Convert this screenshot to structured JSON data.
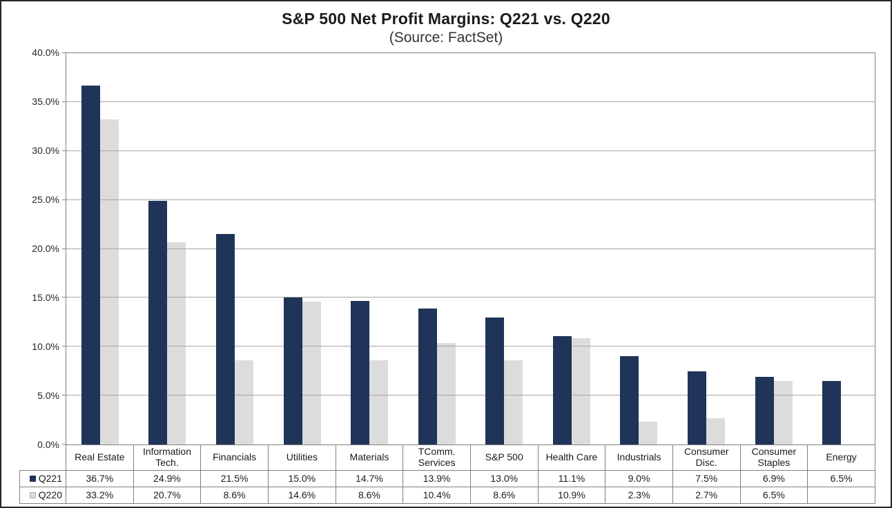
{
  "chart_data": {
    "type": "bar",
    "title": "S&P 500 Net Profit Margins: Q221 vs. Q220",
    "subtitle": "(Source: FactSet)",
    "categories": [
      "Real Estate",
      "Information Tech.",
      "Financials",
      "Utilities",
      "Materials",
      "TComm. Services",
      "S&P 500",
      "Health Care",
      "Industrials",
      "Consumer Disc.",
      "Consumer Staples",
      "Energy"
    ],
    "series": [
      {
        "name": "Q221",
        "color": "#1f3458",
        "values": [
          36.7,
          24.9,
          21.5,
          15.0,
          14.7,
          13.9,
          13.0,
          11.1,
          9.0,
          7.5,
          6.9,
          6.5
        ],
        "labels": [
          "36.7%",
          "24.9%",
          "21.5%",
          "15.0%",
          "14.7%",
          "13.9%",
          "13.0%",
          "11.1%",
          "9.0%",
          "7.5%",
          "6.9%",
          "6.5%"
        ]
      },
      {
        "name": "Q220",
        "color": "#dcdcdc",
        "values": [
          33.2,
          20.7,
          8.6,
          14.6,
          8.6,
          10.4,
          8.6,
          10.9,
          2.3,
          2.7,
          6.5,
          null
        ],
        "labels": [
          "33.2%",
          "20.7%",
          "8.6%",
          "14.6%",
          "8.6%",
          "10.4%",
          "8.6%",
          "10.9%",
          "2.3%",
          "2.7%",
          "6.5%",
          ""
        ]
      }
    ],
    "ylim": [
      0,
      40
    ],
    "ytick_step": 5,
    "ytick_labels": [
      "0.0%",
      "5.0%",
      "10.0%",
      "15.0%",
      "20.0%",
      "25.0%",
      "30.0%",
      "35.0%",
      "40.0%"
    ],
    "grid": true,
    "legend_position": "data-table-left",
    "colors": {
      "q221_bar": "#1f3458",
      "q220_bar": "#dcdcdc",
      "gridline": "#a6a6a6",
      "plot_border": "#808080",
      "table_border": "#7f7f7f",
      "frame_border": "#262626",
      "text": "#1a1a1a"
    }
  }
}
